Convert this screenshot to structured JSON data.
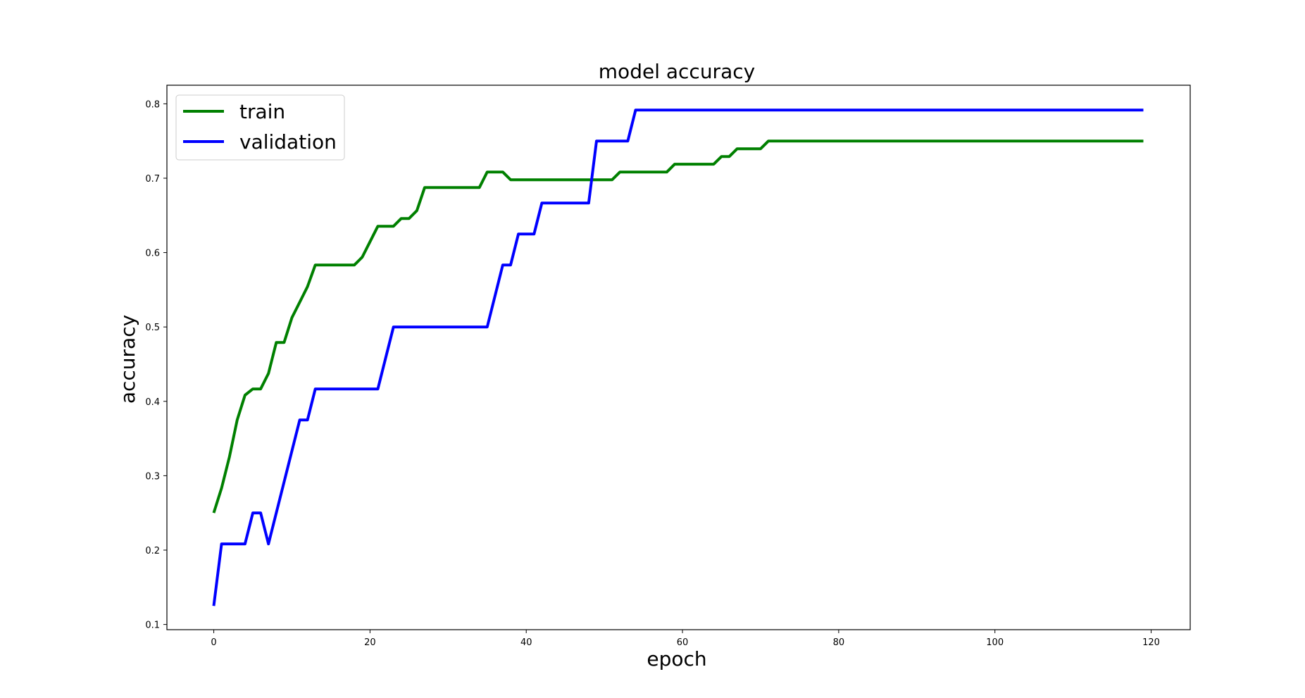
{
  "chart_data": {
    "type": "line",
    "title": "model accuracy",
    "xlabel": "epoch",
    "ylabel": "accuracy",
    "xlim": [
      -6,
      125
    ],
    "ylim": [
      0.093,
      0.825
    ],
    "xticks": [
      0,
      20,
      40,
      60,
      80,
      100,
      120
    ],
    "yticks": [
      0.1,
      0.2,
      0.3,
      0.4,
      0.5,
      0.6,
      0.7,
      0.8
    ],
    "grid": false,
    "legend_position": "upper-left",
    "series": [
      {
        "name": "train",
        "color": "#008000",
        "points": [
          [
            0,
            0.25
          ],
          [
            1,
            0.2833
          ],
          [
            2,
            0.325
          ],
          [
            3,
            0.375
          ],
          [
            4,
            0.4083
          ],
          [
            5,
            0.4167
          ],
          [
            6,
            0.4167
          ],
          [
            7,
            0.4375
          ],
          [
            8,
            0.4792
          ],
          [
            9,
            0.4792
          ],
          [
            10,
            0.5125
          ],
          [
            11,
            0.5333
          ],
          [
            12,
            0.5542
          ],
          [
            13,
            0.5833
          ],
          [
            18,
            0.5833
          ],
          [
            19,
            0.5938
          ],
          [
            20,
            0.6146
          ],
          [
            21,
            0.6354
          ],
          [
            23,
            0.6354
          ],
          [
            24,
            0.6458
          ],
          [
            25,
            0.6458
          ],
          [
            26,
            0.6563
          ],
          [
            27,
            0.6875
          ],
          [
            34,
            0.6875
          ],
          [
            35,
            0.7083
          ],
          [
            37,
            0.7083
          ],
          [
            38,
            0.6979
          ],
          [
            51,
            0.6979
          ],
          [
            52,
            0.7083
          ],
          [
            58,
            0.7083
          ],
          [
            59,
            0.7188
          ],
          [
            64,
            0.7188
          ],
          [
            65,
            0.7292
          ],
          [
            66,
            0.7292
          ],
          [
            67,
            0.7396
          ],
          [
            70,
            0.7396
          ],
          [
            71,
            0.75
          ],
          [
            119,
            0.75
          ]
        ]
      },
      {
        "name": "validation",
        "color": "#0000ff",
        "points": [
          [
            0,
            0.125
          ],
          [
            1,
            0.2083
          ],
          [
            4,
            0.2083
          ],
          [
            5,
            0.25
          ],
          [
            6,
            0.25
          ],
          [
            7,
            0.2083
          ],
          [
            11,
            0.375
          ],
          [
            12,
            0.375
          ],
          [
            13,
            0.4167
          ],
          [
            21,
            0.4167
          ],
          [
            23,
            0.5
          ],
          [
            35,
            0.5
          ],
          [
            37,
            0.5833
          ],
          [
            38,
            0.5833
          ],
          [
            39,
            0.625
          ],
          [
            41,
            0.625
          ],
          [
            42,
            0.6667
          ],
          [
            48,
            0.6667
          ],
          [
            49,
            0.75
          ],
          [
            53,
            0.75
          ],
          [
            54,
            0.7917
          ],
          [
            119,
            0.7917
          ]
        ]
      }
    ]
  }
}
